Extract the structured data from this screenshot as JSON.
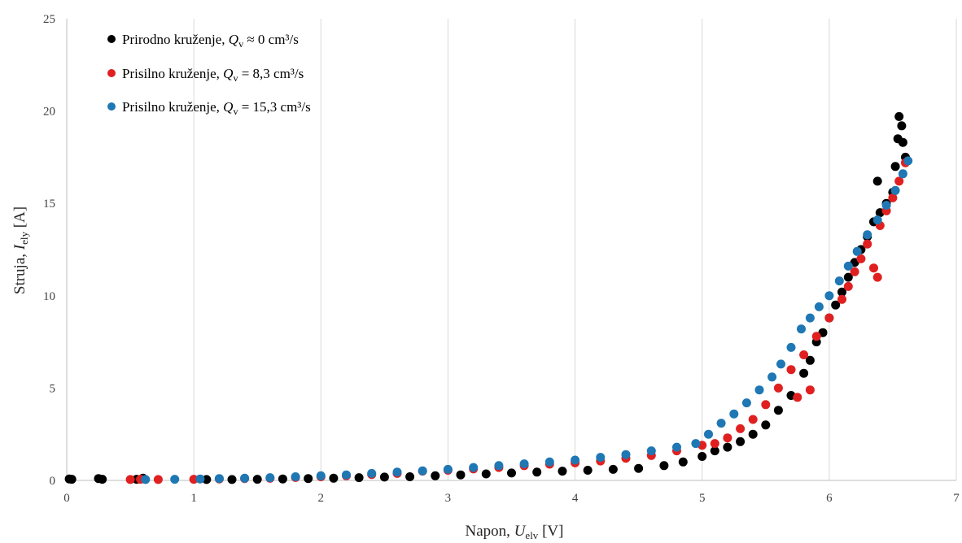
{
  "chart_data": {
    "type": "scatter",
    "title": "",
    "xlabel": {
      "main": "Napon, ",
      "var": "U",
      "sub": "elv",
      "unit": " [V]"
    },
    "ylabel": {
      "main": "Struja, ",
      "var": "I",
      "sub": "ely",
      "unit": " [A]"
    },
    "xlim": [
      0,
      7
    ],
    "ylim": [
      0,
      25
    ],
    "x_ticks": [
      "0",
      "1",
      "2",
      "3",
      "4",
      "5",
      "6",
      "7"
    ],
    "y_ticks": [
      "0",
      "5",
      "10",
      "15",
      "20",
      "25"
    ],
    "grid": "vertical",
    "legend_position": "top-left",
    "series": [
      {
        "name": "Prirodno kruženje, Qv ≈ 0 cm³/s",
        "legend": {
          "prefix": "Prirodno kruženje, ",
          "var": "Q",
          "sub": "v",
          "rest": " ≈ 0 cm³/s"
        },
        "color": "#000000",
        "points": [
          [
            0.02,
            0.08
          ],
          [
            0.04,
            0.06
          ],
          [
            0.25,
            0.1
          ],
          [
            0.28,
            0.06
          ],
          [
            0.55,
            0.06
          ],
          [
            0.6,
            0.12
          ],
          [
            1.1,
            0.05
          ],
          [
            1.3,
            0.05
          ],
          [
            1.5,
            0.06
          ],
          [
            1.7,
            0.08
          ],
          [
            1.9,
            0.1
          ],
          [
            2.1,
            0.12
          ],
          [
            2.3,
            0.15
          ],
          [
            2.5,
            0.18
          ],
          [
            2.7,
            0.2
          ],
          [
            2.9,
            0.25
          ],
          [
            3.1,
            0.3
          ],
          [
            3.3,
            0.35
          ],
          [
            3.5,
            0.4
          ],
          [
            3.7,
            0.45
          ],
          [
            3.9,
            0.5
          ],
          [
            4.1,
            0.55
          ],
          [
            4.3,
            0.6
          ],
          [
            4.5,
            0.65
          ],
          [
            4.7,
            0.8
          ],
          [
            4.85,
            1.0
          ],
          [
            5.0,
            1.3
          ],
          [
            5.1,
            1.6
          ],
          [
            5.2,
            1.8
          ],
          [
            5.3,
            2.1
          ],
          [
            5.4,
            2.5
          ],
          [
            5.5,
            3.0
          ],
          [
            5.6,
            3.8
          ],
          [
            5.7,
            4.6
          ],
          [
            5.8,
            5.8
          ],
          [
            5.85,
            6.5
          ],
          [
            5.9,
            7.5
          ],
          [
            5.95,
            8.0
          ],
          [
            6.0,
            8.8
          ],
          [
            6.05,
            9.5
          ],
          [
            6.1,
            10.2
          ],
          [
            6.15,
            11.0
          ],
          [
            6.2,
            11.8
          ],
          [
            6.25,
            12.5
          ],
          [
            6.3,
            13.2
          ],
          [
            6.35,
            14.0
          ],
          [
            6.38,
            16.2
          ],
          [
            6.4,
            14.5
          ],
          [
            6.45,
            15.0
          ],
          [
            6.5,
            15.6
          ],
          [
            6.52,
            17.0
          ],
          [
            6.54,
            18.5
          ],
          [
            6.55,
            19.7
          ],
          [
            6.57,
            19.2
          ],
          [
            6.58,
            18.3
          ],
          [
            6.6,
            17.5
          ]
        ]
      },
      {
        "name": "Prisilno kruženje, Qv = 8,3 cm³/s",
        "legend": {
          "prefix": "Prisilno kruženje, ",
          "var": "Q",
          "sub": "v",
          "rest": " = 8,3 cm³/s"
        },
        "color": "#e02020",
        "points": [
          [
            0.5,
            0.05
          ],
          [
            0.58,
            0.06
          ],
          [
            0.72,
            0.05
          ],
          [
            1.0,
            0.06
          ],
          [
            1.2,
            0.08
          ],
          [
            1.4,
            0.1
          ],
          [
            1.6,
            0.12
          ],
          [
            1.8,
            0.16
          ],
          [
            2.0,
            0.2
          ],
          [
            2.2,
            0.25
          ],
          [
            2.4,
            0.32
          ],
          [
            2.6,
            0.38
          ],
          [
            2.8,
            0.5
          ],
          [
            3.0,
            0.55
          ],
          [
            3.2,
            0.62
          ],
          [
            3.4,
            0.7
          ],
          [
            3.6,
            0.8
          ],
          [
            3.8,
            0.88
          ],
          [
            4.0,
            0.95
          ],
          [
            4.2,
            1.05
          ],
          [
            4.4,
            1.2
          ],
          [
            4.6,
            1.35
          ],
          [
            4.8,
            1.6
          ],
          [
            5.0,
            1.9
          ],
          [
            5.1,
            2.0
          ],
          [
            5.2,
            2.3
          ],
          [
            5.3,
            2.8
          ],
          [
            5.4,
            3.3
          ],
          [
            5.5,
            4.1
          ],
          [
            5.6,
            5.0
          ],
          [
            5.7,
            6.0
          ],
          [
            5.75,
            4.5
          ],
          [
            5.8,
            6.8
          ],
          [
            5.85,
            4.9
          ],
          [
            5.9,
            7.8
          ],
          [
            6.0,
            8.8
          ],
          [
            6.1,
            9.8
          ],
          [
            6.15,
            10.5
          ],
          [
            6.2,
            11.3
          ],
          [
            6.25,
            12.0
          ],
          [
            6.3,
            12.8
          ],
          [
            6.35,
            11.5
          ],
          [
            6.38,
            11.0
          ],
          [
            6.4,
            13.8
          ],
          [
            6.45,
            14.6
          ],
          [
            6.5,
            15.3
          ],
          [
            6.55,
            16.2
          ],
          [
            6.6,
            17.2
          ]
        ]
      },
      {
        "name": "Prisilno kruženje, Qv = 15,3 cm³/s",
        "legend": {
          "prefix": "Prisilno kruženje, ",
          "var": "Q",
          "sub": "v",
          "rest": " = 15,3 cm³/s"
        },
        "color": "#1f77b4",
        "points": [
          [
            0.62,
            0.05
          ],
          [
            0.85,
            0.06
          ],
          [
            1.05,
            0.08
          ],
          [
            1.2,
            0.1
          ],
          [
            1.4,
            0.12
          ],
          [
            1.6,
            0.15
          ],
          [
            1.8,
            0.2
          ],
          [
            2.0,
            0.25
          ],
          [
            2.2,
            0.3
          ],
          [
            2.4,
            0.38
          ],
          [
            2.6,
            0.45
          ],
          [
            2.8,
            0.52
          ],
          [
            3.0,
            0.6
          ],
          [
            3.2,
            0.7
          ],
          [
            3.4,
            0.8
          ],
          [
            3.6,
            0.9
          ],
          [
            3.8,
            1.0
          ],
          [
            4.0,
            1.1
          ],
          [
            4.2,
            1.25
          ],
          [
            4.4,
            1.4
          ],
          [
            4.6,
            1.6
          ],
          [
            4.8,
            1.8
          ],
          [
            4.95,
            2.0
          ],
          [
            5.05,
            2.5
          ],
          [
            5.15,
            3.1
          ],
          [
            5.25,
            3.6
          ],
          [
            5.35,
            4.2
          ],
          [
            5.45,
            4.9
          ],
          [
            5.55,
            5.6
          ],
          [
            5.62,
            6.3
          ],
          [
            5.7,
            7.2
          ],
          [
            5.78,
            8.2
          ],
          [
            5.85,
            8.8
          ],
          [
            5.92,
            9.4
          ],
          [
            6.0,
            10.0
          ],
          [
            6.08,
            10.8
          ],
          [
            6.15,
            11.6
          ],
          [
            6.22,
            12.4
          ],
          [
            6.3,
            13.3
          ],
          [
            6.38,
            14.1
          ],
          [
            6.45,
            14.9
          ],
          [
            6.52,
            15.7
          ],
          [
            6.58,
            16.6
          ],
          [
            6.62,
            17.3
          ]
        ]
      }
    ]
  }
}
